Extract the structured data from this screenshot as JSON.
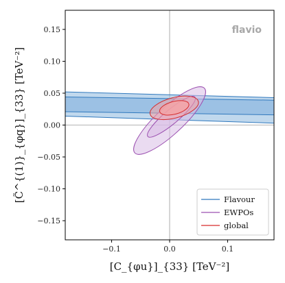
{
  "chart_data": {
    "type": "contour",
    "xlabel": "[C_{φu}]_{33}  [TeV⁻²]",
    "ylabel": "[C̃^{(1)}_{φq}]_{33}  [TeV⁻²]",
    "xlim": [
      -0.18,
      0.18
    ],
    "ylim": [
      -0.18,
      0.18
    ],
    "xticks": [
      -0.1,
      0.0,
      0.1
    ],
    "xtick_labels": [
      "−0.1",
      "0.0",
      "0.1"
    ],
    "yticks": [
      -0.15,
      -0.1,
      -0.05,
      0.0,
      0.05,
      0.1,
      0.15
    ],
    "ytick_labels": [
      "−0.15",
      "−0.10",
      "−0.05",
      "0.00",
      "0.05",
      "0.10",
      "0.15"
    ],
    "watermark": "flavio",
    "legend_position": "lower-right",
    "grid": false,
    "reference_lines": {
      "x": 0.0,
      "y": 0.0
    },
    "series": [
      {
        "name": "Flavour",
        "color": "#2f78bd",
        "fill": "#8db8df",
        "kind": "band",
        "bands": [
          {
            "x": [
              -0.18,
              0.18
            ],
            "lower": [
              0.014,
              0.003
            ],
            "upper": [
              0.052,
              0.043
            ]
          },
          {
            "x": [
              -0.18,
              0.18
            ],
            "lower": [
              0.021,
              0.016
            ],
            "upper": [
              0.044,
              0.039
            ]
          }
        ]
      },
      {
        "name": "EWPOs",
        "color": "#9b4fb0",
        "fill": "#d9bde6",
        "kind": "ellipse",
        "contours": [
          {
            "center": [
              0.0,
              0.007
            ],
            "semi_axes": [
              0.082,
              0.021
            ],
            "angle_deg": 43
          },
          {
            "center": [
              0.003,
              0.013
            ],
            "semi_axes": [
              0.053,
              0.011
            ],
            "angle_deg": 40
          }
        ]
      },
      {
        "name": "global",
        "color": "#d62a2a",
        "fill": "#f6a3a3",
        "kind": "ellipse",
        "contours": [
          {
            "center": [
              0.008,
              0.027
            ],
            "semi_axes": [
              0.043,
              0.016
            ],
            "angle_deg": 15
          },
          {
            "center": [
              0.008,
              0.027
            ],
            "semi_axes": [
              0.026,
              0.01
            ],
            "angle_deg": 15
          }
        ]
      }
    ]
  }
}
